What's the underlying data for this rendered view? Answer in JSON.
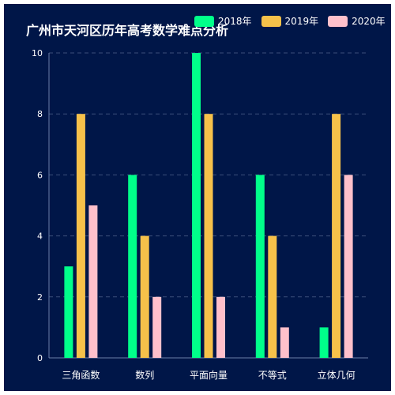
{
  "chart_data": {
    "type": "bar",
    "title": "广州市天河区历年高考数学难点分析",
    "categories": [
      "三角函数",
      "数列",
      "平面向量",
      "不等式",
      "立体几何"
    ],
    "series": [
      {
        "name": "2018年",
        "color": "#00ff8a",
        "values": [
          3,
          6,
          10,
          6,
          1
        ]
      },
      {
        "name": "2019年",
        "color": "#f6c14a",
        "values": [
          8,
          4,
          8,
          4,
          8
        ]
      },
      {
        "name": "2020年",
        "color": "#ffc0cb",
        "values": [
          5,
          2,
          2,
          1,
          6
        ]
      }
    ],
    "ylim": [
      0,
      10
    ],
    "yticks": [
      0,
      2,
      4,
      6,
      8,
      10
    ],
    "grid": true,
    "legend": "top-right"
  }
}
